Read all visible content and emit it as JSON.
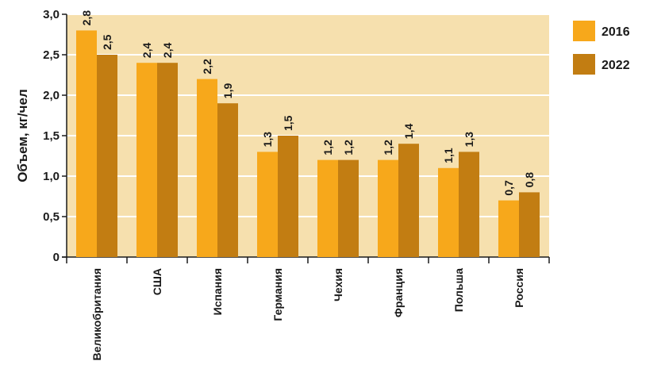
{
  "chart_data": {
    "type": "bar",
    "title": "",
    "xlabel": "",
    "ylabel": "Объем, кг/чел",
    "ylim": [
      0,
      3.0
    ],
    "yticks": [
      "0",
      "0,5",
      "1,0",
      "1,5",
      "2,0",
      "2,5",
      "3,0"
    ],
    "grid": true,
    "legend_position": "right",
    "categories": [
      "Великобритания",
      "США",
      "Испания",
      "Германия",
      "Чехия",
      "Франция",
      "Польша",
      "Россия"
    ],
    "series": [
      {
        "name": "2016",
        "color": "#F7A81B",
        "values": [
          2.8,
          2.4,
          2.2,
          1.3,
          1.2,
          1.2,
          1.1,
          0.7
        ],
        "labels": [
          "2,8",
          "2,4",
          "2,2",
          "1,3",
          "1,2",
          "1,2",
          "1,1",
          "0,7"
        ]
      },
      {
        "name": "2022",
        "color": "#C27D12",
        "values": [
          2.5,
          2.4,
          1.9,
          1.5,
          1.2,
          1.4,
          1.3,
          0.8
        ],
        "labels": [
          "2,5",
          "2,4",
          "1,9",
          "1,5",
          "1,2",
          "1,4",
          "1,3",
          "0,8"
        ]
      }
    ],
    "plot_background": "#F6E0AE",
    "grid_color": "#FFFFFF"
  }
}
